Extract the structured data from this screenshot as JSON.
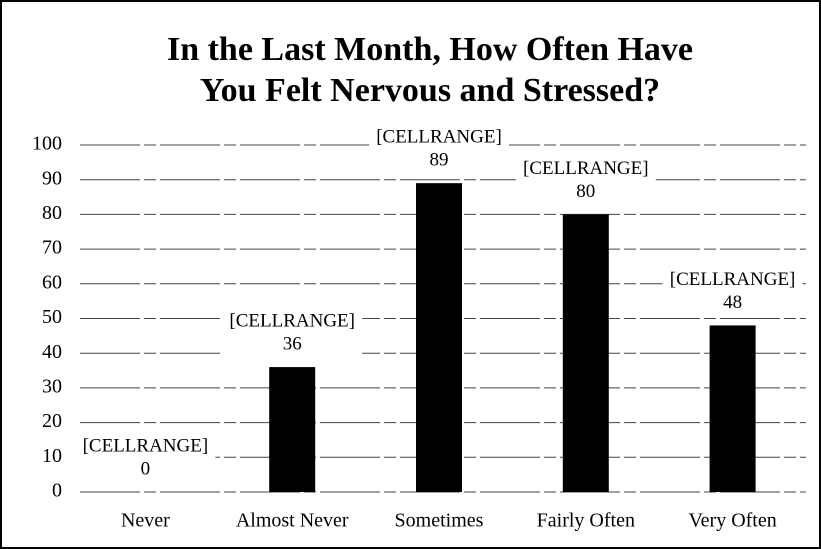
{
  "chart_data": {
    "type": "bar",
    "title": [
      "In the Last Month, How Often Have",
      "You Felt Nervous and Stressed?"
    ],
    "categories": [
      "Never",
      "Almost Never",
      "Sometimes",
      "Fairly Often",
      "Very Often"
    ],
    "values": [
      0,
      36,
      89,
      80,
      48
    ],
    "cell_labels": [
      "[CELLRANGE]",
      "[CELLRANGE]",
      "[CELLRANGE]",
      "[CELLRANGE]",
      "[CELLRANGE]"
    ],
    "color": "#000000",
    "ylim": [
      0,
      100
    ],
    "yticks": [
      0,
      10,
      20,
      30,
      40,
      50,
      60,
      70,
      80,
      90,
      100
    ],
    "grid": true
  }
}
